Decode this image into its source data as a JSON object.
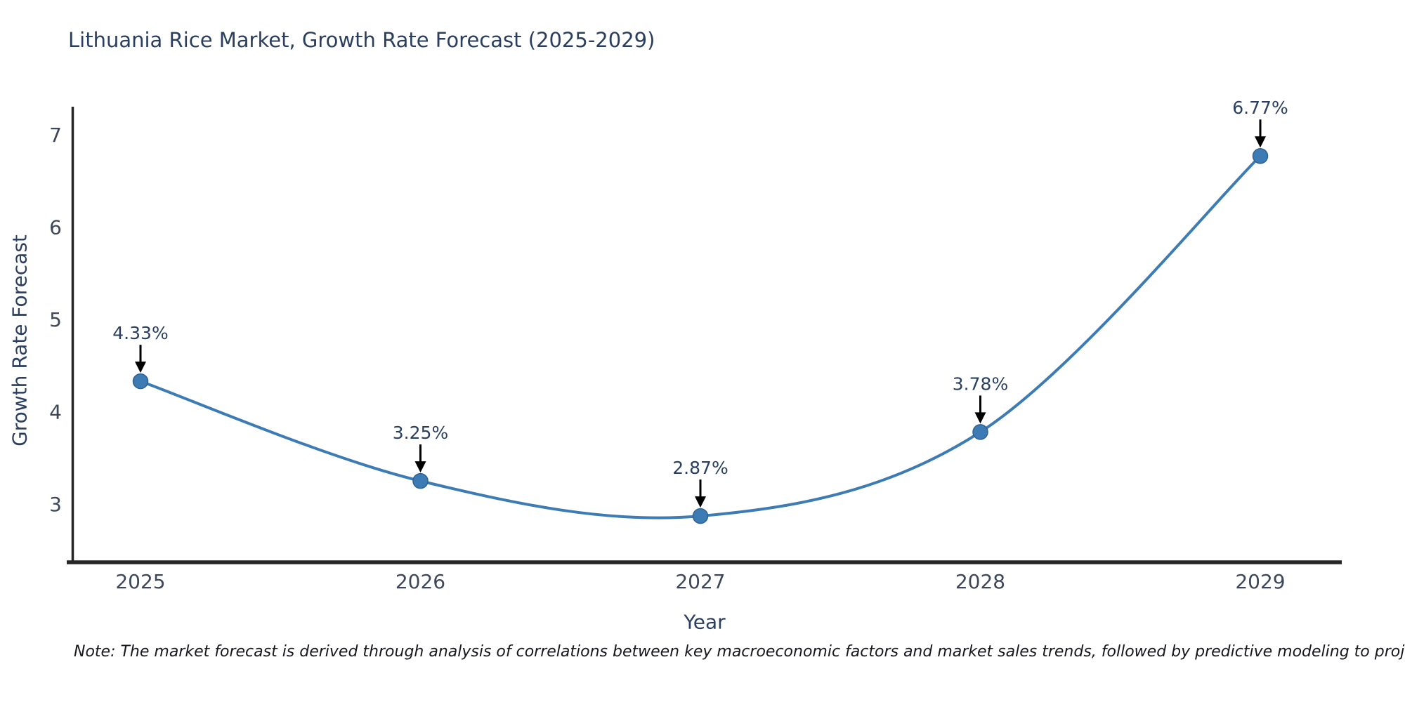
{
  "title": "Lithuania Rice Market, Growth Rate Forecast (2025-2029)",
  "note": "Note: The market forecast is derived through analysis of correlations between key macroeconomic factors and market sales trends, followed by predictive modeling to project future sales.",
  "colors": {
    "title": "#2a3f5f",
    "axis_title": "#2a3f5f",
    "tick_label": "#3d4758",
    "axis_line": "#262626",
    "series_line": "#3d7bb4",
    "marker_fill": "#3d7bb4",
    "marker_edge": "#30628f",
    "annotation_text": "#2a3f5f",
    "arrow": "#000000",
    "note": "#16181d",
    "background": "#ffffff"
  },
  "chart_data": {
    "type": "line",
    "title": "Lithuania Rice Market, Growth Rate Forecast (2025-2029)",
    "xlabel": "Year",
    "ylabel": "Growth Rate Forecast",
    "x": [
      2025,
      2026,
      2027,
      2028,
      2029
    ],
    "values": [
      4.33,
      3.25,
      2.87,
      3.78,
      6.77
    ],
    "point_labels": [
      "4.33%",
      "3.25%",
      "2.87%",
      "3.78%",
      "6.77%"
    ],
    "yticks": [
      3,
      4,
      5,
      6,
      7
    ],
    "ylim": [
      2.37,
      7.3
    ],
    "line_shape": "spline",
    "grid": false,
    "legend_position": "none",
    "annotations": "black down-arrows pointing at each data point with percent labels above"
  }
}
